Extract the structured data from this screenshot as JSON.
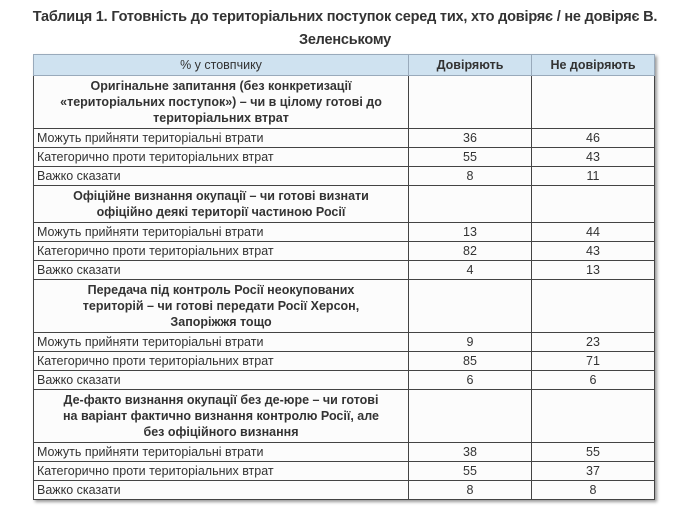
{
  "title": "Таблиця 1. Готовність до територіальних поступок серед тих, хто довіряє / не довіряє В. Зеленському",
  "columns": [
    "% у стовпчику",
    "Довіряють",
    "Не довіряють"
  ],
  "sections": [
    {
      "heading": "Оригінальне запитання (без конкретизації «територіальних поступок») – чи в цілому готові до територіальних втрат",
      "rows": [
        {
          "label": "Можуть прийняти територіальні втрати",
          "trust": "36",
          "distrust": "46"
        },
        {
          "label": "Категорично проти територіальних втрат",
          "trust": "55",
          "distrust": "43"
        },
        {
          "label": "Важко сказати",
          "trust": "8",
          "distrust": "11"
        }
      ]
    },
    {
      "heading": "Офіційне визнання окупації – чи готові визнати офіційно деякі території частиною Росії",
      "rows": [
        {
          "label": "Можуть прийняти територіальні втрати",
          "trust": "13",
          "distrust": "44"
        },
        {
          "label": "Категорично проти територіальних втрат",
          "trust": "82",
          "distrust": "43"
        },
        {
          "label": "Важко сказати",
          "trust": "4",
          "distrust": "13"
        }
      ]
    },
    {
      "heading": "Передача під контроль Росії неокупованих територій – чи готові передати Росії Херсон, Запоріжжя тощо",
      "rows": [
        {
          "label": "Можуть прийняти територіальні втрати",
          "trust": "9",
          "distrust": "23"
        },
        {
          "label": "Категорично проти територіальних втрат",
          "trust": "85",
          "distrust": "71"
        },
        {
          "label": "Важко сказати",
          "trust": "6",
          "distrust": "6"
        }
      ]
    },
    {
      "heading": "Де-факто визнання окупації без де-юре – чи готові на варіант фактично визнання контролю Росії, але без офіційного визнання",
      "rows": [
        {
          "label": "Можуть прийняти територіальні втрати",
          "trust": "38",
          "distrust": "55"
        },
        {
          "label": "Категорично проти територіальних втрат",
          "trust": "55",
          "distrust": "37"
        },
        {
          "label": "Важко сказати",
          "trust": "8",
          "distrust": "8"
        }
      ]
    }
  ],
  "colors": {
    "header_bg": "#cfe2f0",
    "border": "#444444"
  }
}
